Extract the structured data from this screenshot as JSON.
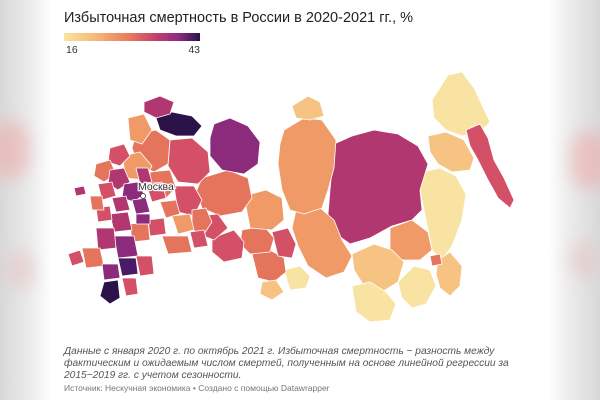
{
  "title": "Избыточная смертность в России в 2020-2021 гг., %",
  "legend": {
    "min": "16",
    "max": "43",
    "colors": [
      "#f9e49e",
      "#f5b475",
      "#e87a5c",
      "#c33f6e",
      "#8a2a7f",
      "#2b134a"
    ]
  },
  "map": {
    "city_label": "Москва",
    "region_colors": {
      "light": "#f8e3a3",
      "light_orange": "#f6c383",
      "orange": "#ef9a67",
      "coral": "#e5745d",
      "red_pink": "#d35067",
      "magenta": "#b13770",
      "purple": "#8c2a7c",
      "dark_purple": "#4a1a66",
      "darkest": "#2b134a"
    }
  },
  "caption": "Данные с января 2020 г. по октябрь 2021 г. Избыточная смертность − разность между фактическим и ожидаемым числом смертей, полученным на основе линейной регрессии за 2015−2019 гг. с учетом сезонности.",
  "source": "Источник: Нескучная экономика • Создано с помощью Datawrapper"
}
